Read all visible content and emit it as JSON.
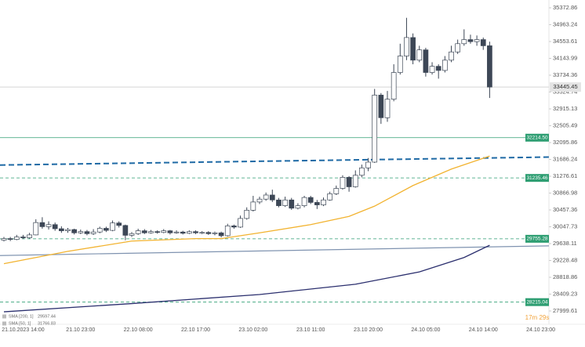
{
  "chart_data": {
    "type": "candlestick",
    "categories": [
      null,
      null,
      null,
      "21.10.2023 14:00",
      null,
      null,
      null,
      null,
      null,
      null,
      null,
      null,
      "21.10 23:00",
      null,
      null,
      null,
      null,
      null,
      null,
      null,
      null,
      "22.10 08:00",
      null,
      null,
      null,
      null,
      null,
      null,
      null,
      null,
      "22.10 17:00",
      null,
      null,
      null,
      null,
      null,
      null,
      null,
      null,
      "23.10 02:00",
      null,
      null,
      null,
      null,
      null,
      null,
      null,
      null,
      "23.10 11:00",
      null,
      null,
      null,
      null,
      null,
      null,
      null,
      null,
      "23.10 20:00",
      null,
      null,
      null,
      null,
      null,
      null,
      null,
      null,
      "24.10 05:00",
      null,
      null,
      null,
      null,
      null,
      null,
      null,
      null,
      "24.10 14:00",
      null,
      null,
      null,
      null,
      null,
      null,
      null,
      null,
      "24.10 23:00"
    ],
    "open": [
      29720,
      29760,
      29740,
      29800,
      29780,
      29850,
      30150,
      30050,
      30100,
      30000,
      29950,
      29980,
      29900,
      29930,
      29880,
      29920,
      30010,
      29960,
      30140,
      30080,
      29840,
      29880,
      29950,
      29900,
      29930,
      29910,
      29950,
      29900,
      29920,
      29890,
      29930,
      29900,
      29910,
      29880,
      29900,
      29830,
      30070,
      30040,
      30250,
      30450,
      30650,
      30720,
      30820,
      30700,
      30560,
      30700,
      30500,
      30560,
      30760,
      30640,
      30580,
      30700,
      30850,
      30980,
      31250,
      31020,
      31300,
      31480,
      31620,
      33250,
      32700,
      33150,
      33800,
      34200,
      34650,
      34100,
      34350,
      33800,
      33950,
      33850,
      34100,
      34300,
      34500,
      34600,
      34550,
      34600,
      34450,
      null,
      null,
      null,
      null,
      null,
      null,
      null,
      null
    ],
    "high": [
      29800,
      29800,
      29850,
      29850,
      29900,
      30230,
      30280,
      30180,
      30150,
      30060,
      30020,
      30000,
      29980,
      29970,
      29990,
      30050,
      30050,
      30200,
      30180,
      30100,
      29920,
      30000,
      29990,
      29970,
      29960,
      29990,
      29970,
      29960,
      29950,
      29960,
      29960,
      29940,
      29940,
      29930,
      29930,
      30120,
      30100,
      30320,
      30520,
      30800,
      30780,
      30880,
      30950,
      30750,
      30780,
      30750,
      30620,
      30800,
      30800,
      30700,
      30760,
      30900,
      31050,
      31300,
      31280,
      31420,
      31560,
      31720,
      33400,
      33300,
      33350,
      34000,
      34500,
      35130,
      34750,
      34450,
      34400,
      34050,
      34000,
      34200,
      34450,
      34600,
      34850,
      34720,
      34700,
      34650,
      34550,
      null,
      null,
      null,
      null,
      null,
      null,
      null,
      null
    ],
    "low": [
      29690,
      29700,
      29720,
      29750,
      29760,
      29840,
      30000,
      29980,
      29950,
      29900,
      29900,
      29860,
      29870,
      29840,
      29850,
      29890,
      29920,
      29940,
      30030,
      29720,
      29800,
      29850,
      29870,
      29880,
      29880,
      29890,
      29860,
      29880,
      29860,
      29870,
      29870,
      29870,
      29850,
      29840,
      29790,
      29810,
      30000,
      30020,
      30220,
      30420,
      30600,
      30680,
      30650,
      30520,
      30530,
      30460,
      30470,
      30520,
      30600,
      30480,
      30550,
      30680,
      30820,
      30950,
      30900,
      31000,
      31250,
      31400,
      31600,
      32550,
      32600,
      33100,
      33750,
      34100,
      34000,
      34050,
      33700,
      33750,
      33650,
      33800,
      34050,
      34250,
      34450,
      34500,
      34450,
      34350,
      33180,
      null,
      null,
      null,
      null,
      null,
      null,
      null,
      null
    ],
    "close": [
      29760,
      29740,
      29800,
      29780,
      29850,
      30150,
      30050,
      30100,
      30000,
      29950,
      29980,
      29900,
      29930,
      29880,
      29920,
      30010,
      29960,
      30140,
      30080,
      29840,
      29880,
      29950,
      29900,
      29930,
      29910,
      29950,
      29900,
      29920,
      29890,
      29930,
      29900,
      29910,
      29880,
      29900,
      29830,
      30070,
      30040,
      30250,
      30450,
      30650,
      30720,
      30820,
      30700,
      30560,
      30700,
      30500,
      30560,
      30760,
      30640,
      30580,
      30700,
      30850,
      30980,
      31250,
      31020,
      31300,
      31480,
      31620,
      33250,
      32700,
      33150,
      33800,
      34200,
      34650,
      34100,
      34350,
      33800,
      33950,
      33850,
      34100,
      34300,
      34500,
      34600,
      34550,
      34600,
      34450,
      33445.45,
      null,
      null,
      null,
      null,
      null,
      null,
      null,
      null
    ],
    "up_color": "#ffffff",
    "down_color": "#3d4756",
    "wick_color": "#3d4756",
    "series": [
      {
        "name": "SMA [200, 1]",
        "legend_value": 29597.44,
        "color": "#2b2f6e",
        "x": [
          0,
          20,
          40,
          55,
          65,
          72,
          76
        ],
        "values": [
          27980,
          28180,
          28400,
          28650,
          28950,
          29300,
          29597.44
        ]
      },
      {
        "name": "SMA [50, 1]",
        "legend_value": 31766.83,
        "color": "#f2b330",
        "x": [
          0,
          10,
          20,
          30,
          34,
          40,
          48,
          54,
          58,
          64,
          70,
          76
        ],
        "values": [
          29150,
          29450,
          29700,
          29760,
          29760,
          29900,
          30100,
          30300,
          30550,
          31050,
          31450,
          31766.83
        ]
      }
    ],
    "trendlines": [
      {
        "color": "#1f6aa5",
        "dashed": true,
        "x": [
          0,
          84
        ],
        "values": [
          31550,
          31740
        ]
      },
      {
        "color": "#7f93b0",
        "dashed": false,
        "x": [
          0,
          84
        ],
        "values": [
          29350,
          29580
        ]
      }
    ],
    "levels": [
      {
        "value": 32214.5,
        "label": "32214.50",
        "dashed": false,
        "color": "#2e9e72"
      },
      {
        "value": 31235.46,
        "label": "31235.46",
        "dashed": true,
        "color": "#2e9e72"
      },
      {
        "value": 29755.28,
        "label": "29755.28",
        "dashed": true,
        "color": "#2e9e72"
      },
      {
        "value": 28215.04,
        "label": "28215.04",
        "dashed": true,
        "color": "#2e9e72"
      }
    ],
    "last_price": 33445.45,
    "timer": "17m 29s",
    "ylim": [
      27676,
      35563
    ],
    "yticks": [
      35372.86,
      34963.24,
      34553.61,
      34143.99,
      33734.36,
      33324.74,
      32915.13,
      32505.49,
      32095.86,
      31686.24,
      31276.61,
      30866.98,
      30457.36,
      30047.73,
      29638.11,
      29228.48,
      28818.86,
      28409.23,
      27999.61
    ]
  }
}
